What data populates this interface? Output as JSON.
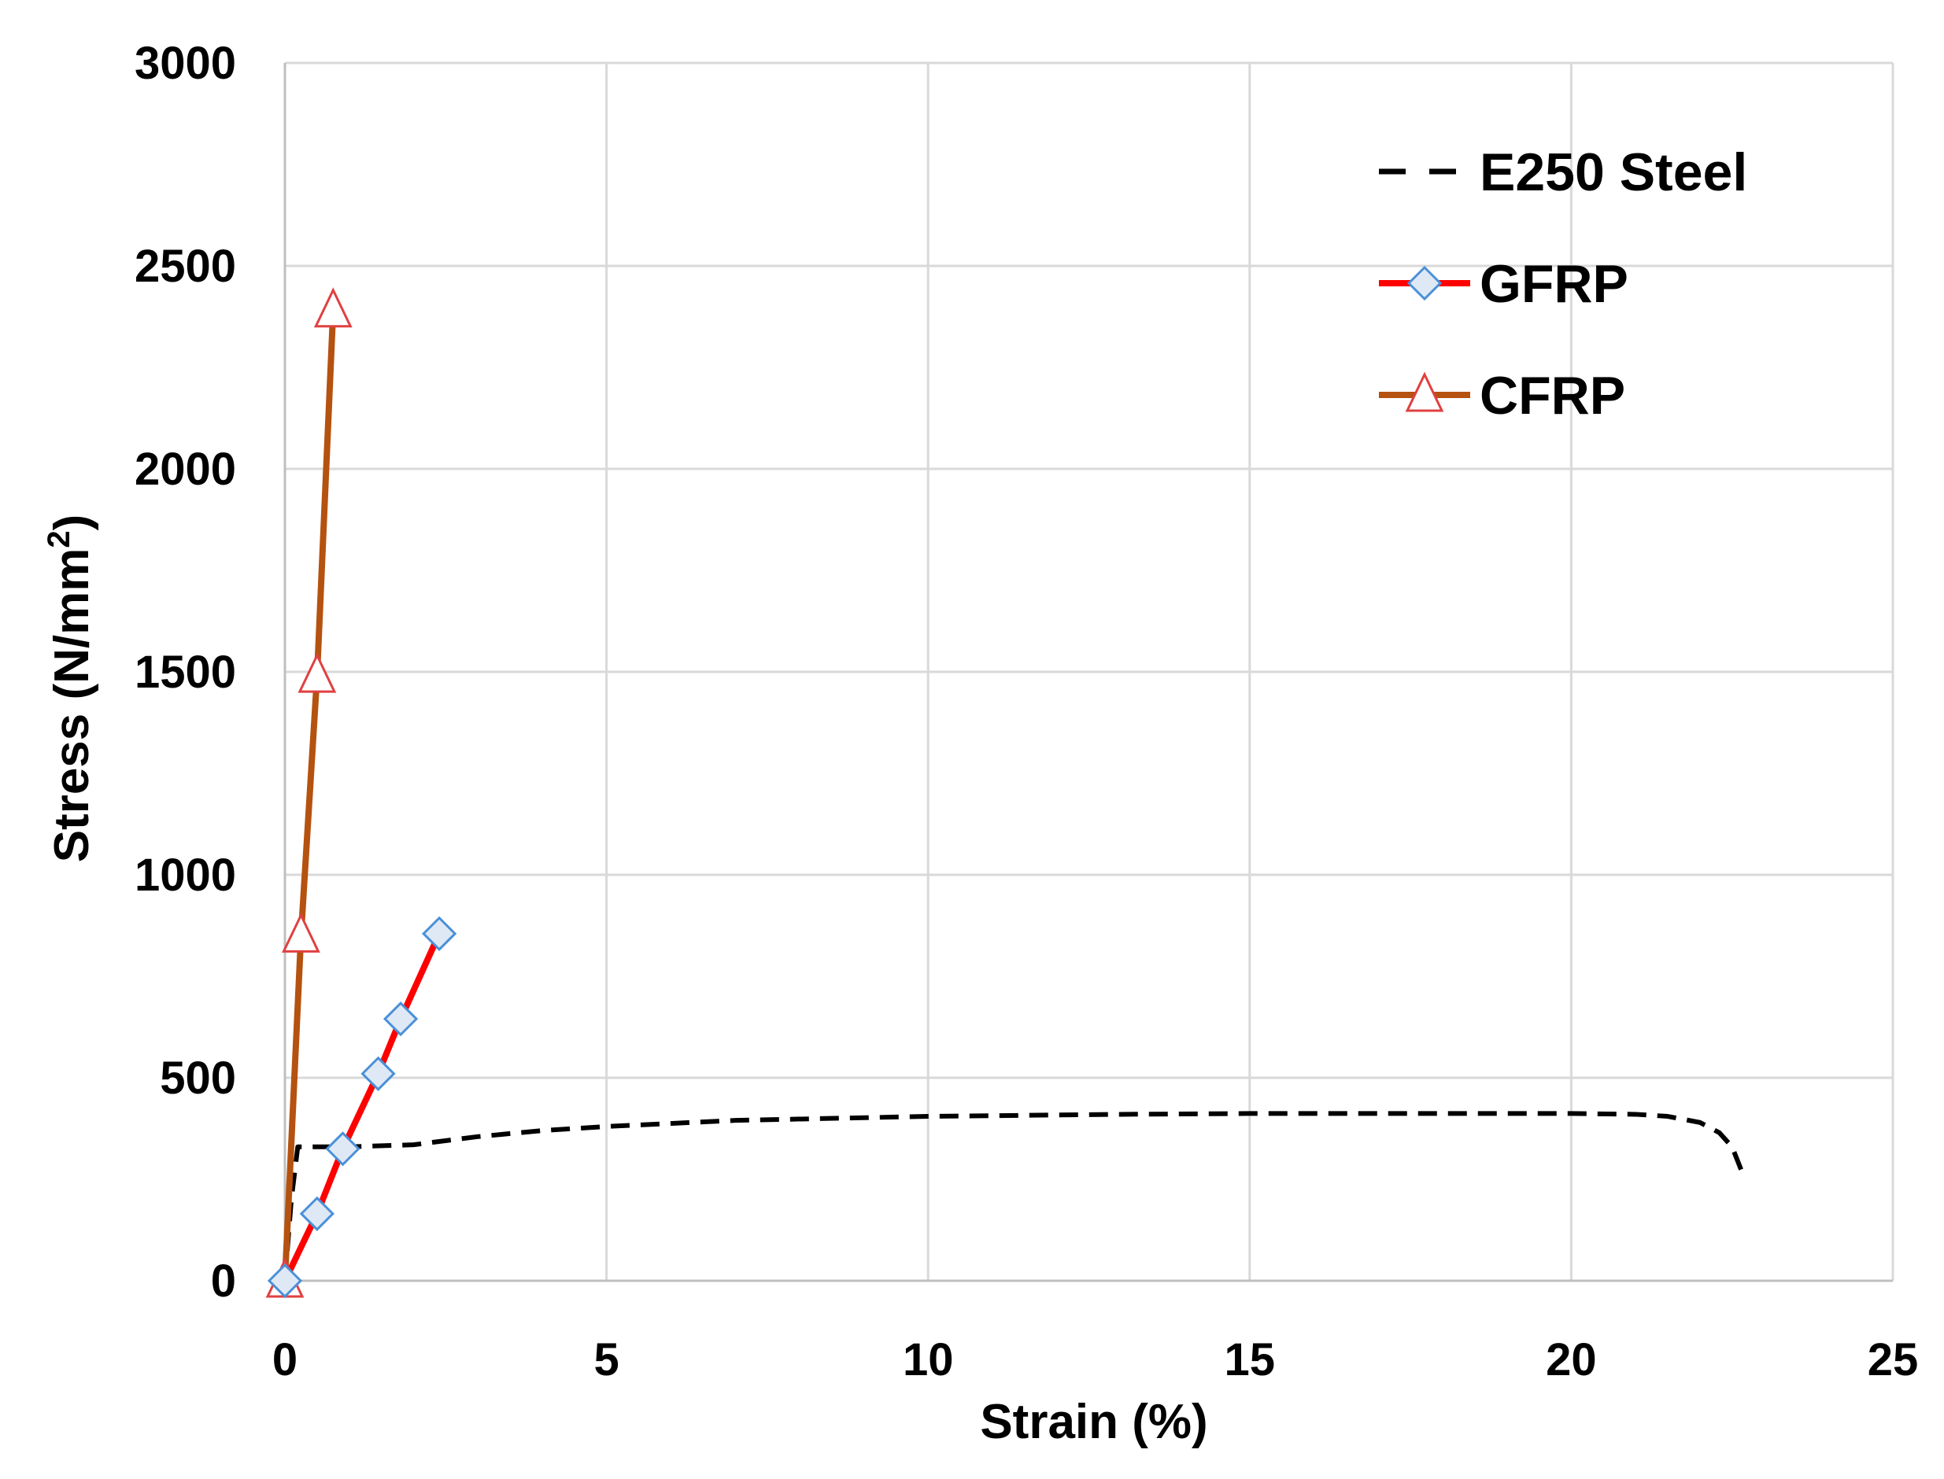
{
  "chart_data": {
    "type": "line",
    "title": "",
    "xlabel": "Strain (%)",
    "ylabel": "Stress (N/mm²)",
    "ylabel_base": "Stress (N/mm",
    "ylabel_sup": "2",
    "ylabel_end": ")",
    "xlim": [
      0,
      25
    ],
    "ylim": [
      0,
      3000
    ],
    "xticks": [
      0,
      5,
      10,
      15,
      20,
      25
    ],
    "yticks": [
      0,
      500,
      1000,
      1500,
      2000,
      2500,
      3000
    ],
    "grid": true,
    "legend_position": "top-right",
    "series": [
      {
        "name": "E250 Steel",
        "style": "dashed",
        "color": "#000000",
        "marker": "none",
        "x": [
          0,
          0.1,
          0.2,
          1,
          2,
          3,
          4,
          5,
          7,
          10,
          13,
          15,
          17,
          20,
          21,
          21.5,
          22,
          22.3,
          22.5,
          22.7
        ],
        "y": [
          0,
          200,
          330,
          330,
          335,
          355,
          370,
          380,
          395,
          405,
          410,
          412,
          412,
          412,
          410,
          405,
          390,
          365,
          330,
          250
        ]
      },
      {
        "name": "GFRP",
        "style": "solid",
        "color": "#ff0000",
        "marker": "diamond",
        "marker_fill": "#dfe9f5",
        "marker_stroke": "#4a90d9",
        "x": [
          0,
          0.5,
          0.9,
          1.45,
          1.8,
          2.4
        ],
        "y": [
          0,
          165,
          325,
          510,
          645,
          855
        ]
      },
      {
        "name": "CFRP",
        "style": "solid",
        "color": "#b5520f",
        "marker": "triangle",
        "marker_fill": "#ffffff",
        "marker_stroke": "#e04040",
        "x": [
          0,
          0.25,
          0.5,
          0.75
        ],
        "y": [
          0,
          850,
          1490,
          2390
        ]
      }
    ]
  }
}
